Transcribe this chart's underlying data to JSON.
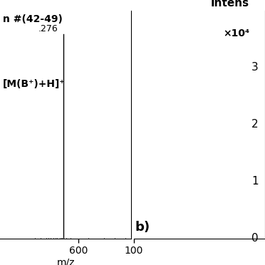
{
  "panel_a": {
    "scan_label": "n #(42-49)",
    "annotation_label": "[M(B⁺)+H]⁺",
    "peak_mz": 576.276,
    "peak_label": ".276",
    "peak_intensity": 3.85,
    "xlim": [
      480,
      680
    ],
    "ylim": [
      0,
      4.3
    ],
    "xticks": [
      600
    ],
    "xlabel": "m/z",
    "noise_peaks": [
      [
        505,
        0.04
      ],
      [
        512,
        0.03
      ],
      [
        520,
        0.05
      ],
      [
        528,
        0.03
      ],
      [
        533,
        0.06
      ],
      [
        538,
        0.04
      ],
      [
        542,
        0.07
      ],
      [
        547,
        0.05
      ],
      [
        551,
        0.06
      ],
      [
        554,
        0.09
      ],
      [
        557,
        0.07
      ],
      [
        559,
        0.05
      ],
      [
        561,
        0.06
      ],
      [
        563,
        0.04
      ],
      [
        565,
        0.07
      ],
      [
        567,
        0.06
      ],
      [
        569,
        0.05
      ],
      [
        571,
        0.06
      ],
      [
        573,
        0.08
      ],
      [
        575,
        0.09
      ],
      [
        577,
        0.06
      ],
      [
        579,
        0.05
      ],
      [
        581,
        0.07
      ],
      [
        583,
        0.05
      ],
      [
        585,
        0.04
      ],
      [
        588,
        0.06
      ],
      [
        591,
        0.04
      ],
      [
        594,
        0.05
      ],
      [
        597,
        0.04
      ],
      [
        600,
        0.05
      ],
      [
        603,
        0.04
      ],
      [
        607,
        0.05
      ],
      [
        611,
        0.04
      ],
      [
        615,
        0.06
      ],
      [
        619,
        0.04
      ],
      [
        623,
        0.05
      ],
      [
        627,
        0.04
      ],
      [
        631,
        0.05
      ],
      [
        635,
        0.04
      ],
      [
        639,
        0.06
      ],
      [
        643,
        0.04
      ],
      [
        647,
        0.05
      ],
      [
        651,
        0.04
      ],
      [
        655,
        0.06
      ],
      [
        659,
        0.04
      ],
      [
        663,
        0.05
      ],
      [
        667,
        0.04
      ],
      [
        671,
        0.06
      ],
      [
        675,
        0.04
      ]
    ]
  },
  "panel_b": {
    "ylabel": "Intens",
    "ylabel2": "×10⁴",
    "panel_label": "b)",
    "xlim": [
      100,
      200
    ],
    "ylim": [
      0,
      4.0
    ],
    "yticks": [
      0,
      1,
      2,
      3
    ],
    "xtick_label": "100"
  },
  "bg_color": "#ffffff"
}
